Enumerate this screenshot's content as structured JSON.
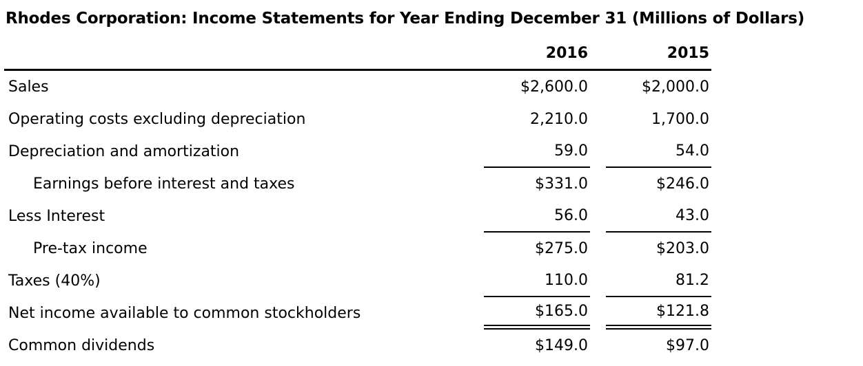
{
  "title": "Rhodes Corporation: Income Statements for Year Ending December 31 (Millions of Dollars)",
  "colors": {
    "background": "#ffffff",
    "text": "#000000",
    "rule": "#000000"
  },
  "table": {
    "columns": [
      "2016",
      "2015"
    ],
    "rows": [
      {
        "label": "Sales",
        "indent": false,
        "values": [
          "$2,600.0",
          "$2,000.0"
        ],
        "underline": "none"
      },
      {
        "label": "Operating costs excluding depreciation",
        "indent": false,
        "values": [
          "2,210.0",
          "1,700.0"
        ],
        "underline": "none"
      },
      {
        "label": "Depreciation and amortization",
        "indent": false,
        "values": [
          "59.0",
          "54.0"
        ],
        "underline": "single"
      },
      {
        "label": "Earnings before interest and taxes",
        "indent": true,
        "values": [
          "$331.0",
          "$246.0"
        ],
        "underline": "none"
      },
      {
        "label": "Less Interest",
        "indent": false,
        "values": [
          "56.0",
          "43.0"
        ],
        "underline": "single"
      },
      {
        "label": "Pre-tax income",
        "indent": true,
        "values": [
          "$275.0",
          "$203.0"
        ],
        "underline": "none"
      },
      {
        "label": "Taxes (40%)",
        "indent": false,
        "values": [
          "110.0",
          "81.2"
        ],
        "underline": "single"
      },
      {
        "label": "Net income available to common stockholders",
        "indent": false,
        "values": [
          "$165.0",
          "$121.8"
        ],
        "underline": "double"
      },
      {
        "label": "Common dividends",
        "indent": false,
        "values": [
          "$149.0",
          "$97.0"
        ],
        "underline": "none"
      }
    ]
  }
}
